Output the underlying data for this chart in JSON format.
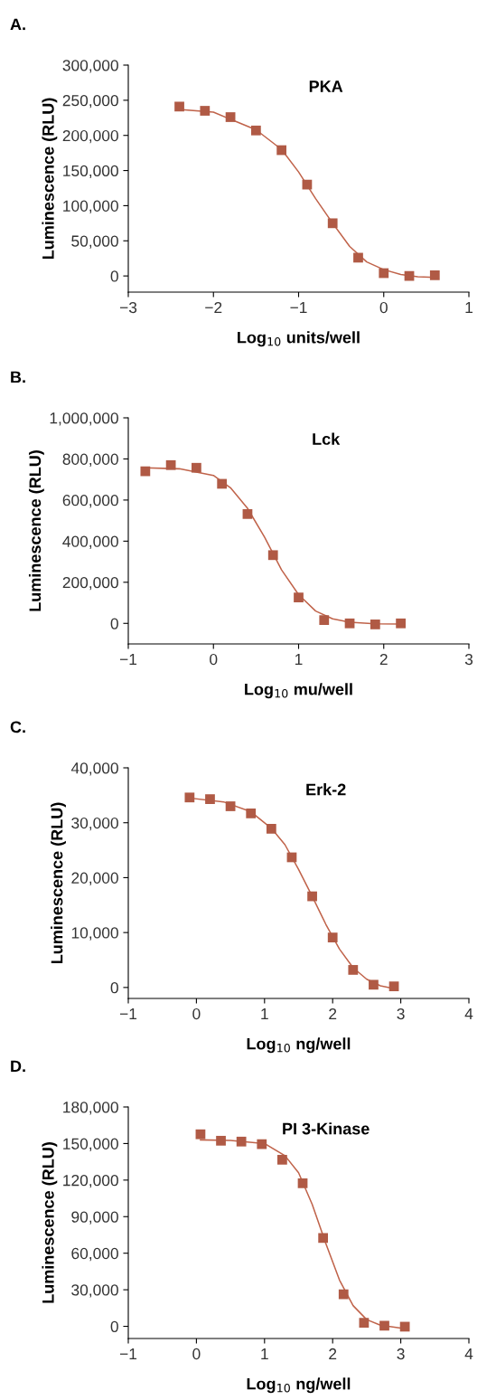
{
  "chart_data": [
    {
      "type": "scatter",
      "title": "A.",
      "subtitle": "PKA",
      "xlabel": "Log$_{10}$ units/well",
      "ylabel": "Luminescence (RLU)",
      "marker": "square",
      "xlim": [
        -3,
        1
      ],
      "xticks": [
        {
          "value": -3,
          "label": "−3"
        },
        {
          "value": -2,
          "label": "−2"
        },
        {
          "value": -1,
          "label": "−1"
        },
        0,
        1
      ],
      "ylim": [
        -23000,
        300000
      ],
      "yticks": [
        {
          "value": 0,
          "label": "0"
        },
        {
          "value": 50000,
          "label": "50,000"
        },
        {
          "value": 100000,
          "label": "100,000"
        },
        {
          "value": 150000,
          "label": "150,000"
        },
        {
          "value": 200000,
          "label": "200,000"
        },
        {
          "value": 250000,
          "label": "250,000"
        },
        {
          "value": 300000,
          "label": "300,000"
        }
      ],
      "series": [
        {
          "type": "line",
          "color": "#c0634a",
          "marker": "none",
          "x": [
            -2.4,
            -2.0,
            -1.5,
            -1.2,
            -1.0,
            -0.8,
            -0.6,
            -0.4,
            -0.2,
            0,
            0.2,
            0.4,
            0.6
          ],
          "values": [
            237000,
            233000,
            208000,
            180000,
            148000,
            110000,
            75000,
            42000,
            20000,
            9000,
            2000,
            -1000,
            -2000
          ]
        },
        {
          "color": "#b05a45",
          "x": [
            -2.4,
            -2.1,
            -1.8,
            -1.5,
            -1.2,
            -0.9,
            -0.6,
            -0.3,
            0,
            0.3,
            0.6
          ],
          "values": [
            241000,
            235000,
            226000,
            207000,
            179000,
            130000,
            75000,
            26000,
            4000,
            0,
            1000
          ]
        }
      ]
    },
    {
      "type": "scatter",
      "title": "B.",
      "subtitle": "Lck",
      "xlabel": "Log$_{10}$ mu/well",
      "ylabel": "Luminescence (RLU)",
      "marker": "square",
      "xlim": [
        -1,
        3
      ],
      "xticks": [
        {
          "value": -1,
          "label": "−1"
        },
        0,
        1,
        2,
        3
      ],
      "ylim": [
        -100000,
        1000000
      ],
      "yticks": [
        {
          "value": 0,
          "label": "0"
        },
        {
          "value": 200000,
          "label": "200,000"
        },
        {
          "value": 400000,
          "label": "400,000"
        },
        {
          "value": 600000,
          "label": "600,000"
        },
        {
          "value": 800000,
          "label": "800,000"
        },
        {
          "value": 1000000,
          "label": "1,000,000"
        }
      ],
      "series": [
        {
          "type": "line",
          "color": "#c0634a",
          "marker": "none",
          "x": [
            -0.8,
            -0.4,
            0,
            0.2,
            0.4,
            0.6,
            0.8,
            1.0,
            1.2,
            1.4,
            1.6,
            1.9,
            2.2
          ],
          "values": [
            757000,
            752000,
            720000,
            660000,
            560000,
            420000,
            260000,
            140000,
            60000,
            22000,
            6000,
            -2000,
            -3000
          ]
        },
        {
          "color": "#b05a45",
          "x": [
            -0.8,
            -0.5,
            -0.2,
            0.1,
            0.4,
            0.7,
            1.0,
            1.3,
            1.6,
            1.9,
            2.2
          ],
          "values": [
            740000,
            770000,
            757000,
            679000,
            532000,
            332000,
            126000,
            16000,
            0,
            -5000,
            0
          ]
        }
      ]
    },
    {
      "type": "scatter",
      "title": "C.",
      "subtitle": "Erk-2",
      "xlabel": "Log$_{10}$ ng/well",
      "ylabel": "Luminescence (RLU)",
      "marker": "square",
      "xlim": [
        -1,
        4
      ],
      "xticks": [
        {
          "value": -1,
          "label": "−1"
        },
        0,
        1,
        2,
        3,
        4
      ],
      "ylim": [
        -2000,
        40000
      ],
      "yticks": [
        {
          "value": 0,
          "label": "0"
        },
        {
          "value": 10000,
          "label": "10,000"
        },
        {
          "value": 20000,
          "label": "20,000"
        },
        {
          "value": 30000,
          "label": "30,000"
        },
        {
          "value": 40000,
          "label": "40,000"
        }
      ],
      "series": [
        {
          "type": "line",
          "color": "#c0634a",
          "marker": "none",
          "x": [
            -0.1,
            0.4,
            0.8,
            1.1,
            1.3,
            1.5,
            1.7,
            1.9,
            2.1,
            2.3,
            2.5,
            2.7,
            2.9
          ],
          "values": [
            34500,
            33800,
            32000,
            29000,
            26000,
            21500,
            16600,
            11500,
            7000,
            3600,
            1500,
            300,
            -200
          ]
        },
        {
          "color": "#b05a45",
          "x": [
            -0.1,
            0.2,
            0.5,
            0.8,
            1.1,
            1.4,
            1.7,
            2.0,
            2.3,
            2.6,
            2.9
          ],
          "values": [
            34600,
            34300,
            33000,
            31700,
            28900,
            23700,
            16600,
            9100,
            3200,
            500,
            200
          ]
        }
      ]
    },
    {
      "type": "scatter",
      "title": "D.",
      "subtitle": "PI 3-Kinase",
      "xlabel": "Log$_{10}$ ng/well",
      "ylabel": "Luminescence (RLU)",
      "marker": "square",
      "xlim": [
        -1,
        4
      ],
      "xticks": [
        {
          "value": -1,
          "label": "−1"
        },
        0,
        1,
        2,
        3,
        4
      ],
      "ylim": [
        -10000,
        180000
      ],
      "yticks": [
        {
          "value": 0,
          "label": "0"
        },
        {
          "value": 30000,
          "label": "30,000"
        },
        {
          "value": 60000,
          "label": "60,000"
        },
        {
          "value": 90000,
          "label": "90,000"
        },
        {
          "value": 120000,
          "label": "120,000"
        },
        {
          "value": 150000,
          "label": "150,000"
        },
        {
          "value": 180000,
          "label": "180,000"
        }
      ],
      "series": [
        {
          "type": "line",
          "color": "#c0634a",
          "marker": "none",
          "x": [
            0.06,
            0.5,
            1.0,
            1.3,
            1.5,
            1.7,
            1.9,
            2.1,
            2.3,
            2.5,
            2.7,
            3.06
          ],
          "values": [
            153000,
            152500,
            150000,
            140000,
            126000,
            100000,
            68000,
            38000,
            17000,
            5500,
            1000,
            -2000
          ]
        },
        {
          "color": "#b05a45",
          "x": [
            0.06,
            0.36,
            0.66,
            0.96,
            1.26,
            1.56,
            1.86,
            2.16,
            2.46,
            2.76,
            3.06
          ],
          "values": [
            157600,
            152300,
            151600,
            149500,
            136700,
            117400,
            72500,
            26300,
            2900,
            500,
            -300
          ]
        }
      ]
    }
  ]
}
